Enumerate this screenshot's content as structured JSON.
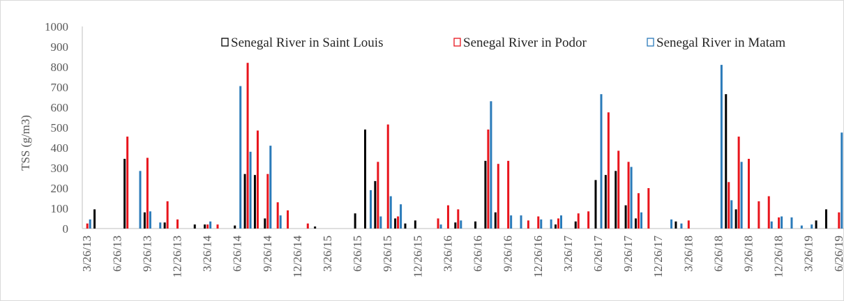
{
  "chart_data": {
    "type": "bar",
    "y_label": "TSS (g/m3)",
    "categories": [
      "3/26/13",
      null,
      null,
      "6/26/13",
      null,
      null,
      "9/26/13",
      null,
      null,
      "12/26/13",
      null,
      null,
      "3/26/14",
      null,
      null,
      "6/26/14",
      null,
      null,
      "9/26/14",
      null,
      null,
      "12/26/14",
      null,
      null,
      "3/26/15",
      null,
      null,
      "6/26/15",
      null,
      null,
      "9/26/15",
      null,
      null,
      "12/26/15",
      null,
      null,
      "3/26/16",
      null,
      null,
      "6/26/16",
      null,
      null,
      "9/26/16",
      null,
      null,
      "12/26/16",
      null,
      null,
      "3/26/17",
      null,
      null,
      "6/26/17",
      null,
      null,
      "9/26/17",
      null,
      null,
      "12/26/17",
      null,
      null,
      "3/26/18",
      null,
      null,
      "6/26/18",
      null,
      null,
      "9/26/18",
      null,
      null,
      "12/26/18",
      null,
      null,
      "3/26/19",
      null,
      null,
      "6/26/19"
    ],
    "series": [
      {
        "name": "Senegal River in Saint Louis",
        "color": "#000000",
        "values": [
          null,
          95,
          null,
          null,
          345,
          null,
          80,
          null,
          30,
          null,
          null,
          20,
          20,
          null,
          null,
          15,
          270,
          265,
          50,
          null,
          null,
          null,
          null,
          10,
          null,
          null,
          null,
          75,
          490,
          235,
          null,
          50,
          25,
          40,
          null,
          null,
          null,
          30,
          null,
          35,
          335,
          80,
          null,
          null,
          null,
          null,
          null,
          20,
          null,
          35,
          null,
          240,
          265,
          285,
          115,
          50,
          null,
          null,
          null,
          35,
          null,
          null,
          null,
          null,
          665,
          95,
          null,
          null,
          null,
          null,
          null,
          null,
          null,
          40,
          95,
          null
        ]
      },
      {
        "name": "Senegal River in Podor",
        "color": "#e8141c",
        "values": [
          25,
          null,
          null,
          null,
          455,
          null,
          350,
          null,
          135,
          45,
          null,
          null,
          20,
          20,
          null,
          null,
          820,
          485,
          270,
          130,
          90,
          null,
          25,
          null,
          null,
          null,
          null,
          null,
          null,
          330,
          515,
          60,
          null,
          null,
          null,
          50,
          115,
          95,
          null,
          null,
          490,
          320,
          335,
          null,
          40,
          60,
          null,
          50,
          null,
          75,
          85,
          null,
          575,
          385,
          330,
          175,
          200,
          null,
          null,
          null,
          40,
          null,
          null,
          null,
          230,
          455,
          345,
          135,
          160,
          55,
          null,
          null,
          null,
          null,
          null,
          80
        ]
      },
      {
        "name": "Senegal River in Matam",
        "color": "#2a7ab9",
        "values": [
          45,
          null,
          null,
          null,
          null,
          285,
          85,
          30,
          null,
          null,
          null,
          null,
          35,
          null,
          null,
          705,
          380,
          null,
          410,
          65,
          null,
          null,
          null,
          null,
          null,
          null,
          null,
          null,
          190,
          60,
          160,
          120,
          null,
          null,
          null,
          20,
          null,
          40,
          null,
          null,
          630,
          null,
          65,
          65,
          null,
          45,
          45,
          65,
          null,
          null,
          null,
          665,
          null,
          null,
          305,
          80,
          null,
          null,
          45,
          25,
          null,
          null,
          null,
          810,
          140,
          330,
          null,
          null,
          35,
          60,
          55,
          15,
          20,
          null,
          null,
          475
        ]
      }
    ],
    "ylim": [
      0,
      1000
    ],
    "yticks": [
      0,
      100,
      200,
      300,
      400,
      500,
      600,
      700,
      800,
      900,
      1000
    ],
    "grid": false,
    "legend": "top"
  }
}
